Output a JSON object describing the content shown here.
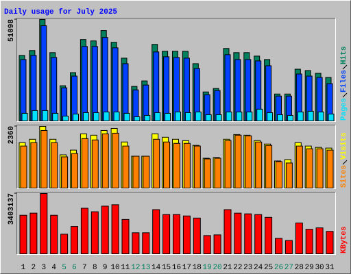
{
  "chart_data": {
    "type": "bar",
    "title": "Daily usage for July 2025",
    "categories": [
      "1",
      "2",
      "3",
      "4",
      "5",
      "6",
      "7",
      "8",
      "9",
      "10",
      "11",
      "12",
      "13",
      "14",
      "15",
      "16",
      "17",
      "18",
      "19",
      "20",
      "21",
      "22",
      "23",
      "24",
      "25",
      "26",
      "27",
      "28",
      "29",
      "30",
      "31"
    ],
    "weekends": [
      "5",
      "6",
      "12",
      "13",
      "19",
      "20",
      "26",
      "27"
    ],
    "weekend_color": "#00805c",
    "weekday_color": "#000000",
    "panels": [
      {
        "ylim": [
          0,
          51098
        ],
        "yticks": [
          51098
        ],
        "series": [
          {
            "name": "Hits",
            "color": "#00805c",
            "values": [
              33022,
              35455,
              51098,
              34413,
              17728,
              24332,
              41017,
              40322,
              45536,
              39626,
              31632,
              17380,
              20161,
              38584,
              35108,
              35108,
              35108,
              28851,
              14599,
              16337,
              36498,
              34413,
              34413,
              32674,
              30936,
              13556,
              13556,
              26070,
              25375,
              23984,
              21899
            ]
          },
          {
            "name": "Files",
            "color": "#0040ff",
            "values": [
              30936,
              33022,
              47969,
              31979,
              16685,
              22594,
              37541,
              37541,
              42060,
              36846,
              28851,
              15642,
              18075,
              34760,
              32327,
              31979,
              31632,
              26418,
              13209,
              15294,
              33370,
              30936,
              30936,
              30241,
              27808,
              12514,
              12514,
              23637,
              22594,
              21899,
              18770
            ]
          },
          {
            "name": "Pages",
            "color": "#00e0ff",
            "values": [
              3824,
              5214,
              5214,
              3824,
              2433,
              3476,
              4171,
              4171,
              4519,
              4519,
              3824,
              2086,
              2781,
              4171,
              3824,
              4519,
              4171,
              4519,
              3128,
              3128,
              4519,
              4519,
              4519,
              5909,
              4171,
              3128,
              2781,
              4519,
              4866,
              4519,
              3476
            ]
          }
        ]
      },
      {
        "ylim": [
          0,
          2360
        ],
        "yticks": [
          2360
        ],
        "series": [
          {
            "name": "Visits",
            "color": "#ffff00",
            "values": [
              1737,
              1867,
              2360,
              1867,
              1271,
              1452,
              2074,
              2023,
              2204,
              2282,
              1763,
              1219,
              1219,
              2074,
              1945,
              1867,
              1815,
              1634,
              1141,
              1167,
              1867,
              2048,
              2023,
              1815,
              1685,
              1037,
              1089,
              1737,
              1608,
              1556,
              1530
            ]
          },
          {
            "name": "Sites",
            "color": "#ff8000",
            "values": [
              1608,
              1737,
              2204,
              1737,
              1193,
              1322,
              1893,
              1841,
              2074,
              2100,
              1608,
              1219,
              1219,
              1867,
              1763,
              1711,
              1711,
              1608,
              1115,
              1141,
              1815,
              2023,
              1997,
              1763,
              1634,
              1011,
              959,
              1608,
              1504,
              1504,
              1452
            ]
          }
        ]
      },
      {
        "ylim": [
          0,
          3403137
        ],
        "yticks": [
          3403137
        ],
        "series": [
          {
            "name": "KBytes",
            "color": "#ff0000",
            "values": [
              2176405,
              2295118,
              3403137,
              2176405,
              1107988,
              1543269,
              2572115,
              2374260,
              2690828,
              2769970,
              1938979,
              1187130,
              1187130,
              2492973,
              2215976,
              2215976,
              2136834,
              2018121,
              1028846,
              1068417,
              2492973,
              2295118,
              2255547,
              2215976,
              2057692,
              870562,
              751849,
              1741124,
              1384985,
              1464127,
              1266272
            ]
          }
        ]
      }
    ]
  }
}
